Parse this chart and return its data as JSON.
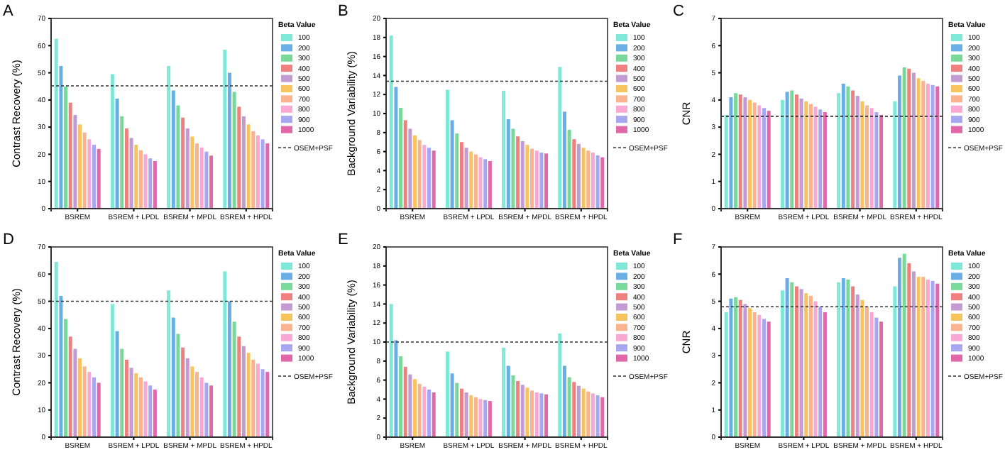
{
  "chart_data": [
    {
      "type": "bar",
      "title": "A",
      "ylabel": "Contrast Recovery (%)",
      "categories": [
        "BSREM",
        "BSREM + LPDL",
        "BSREM + MPDL",
        "BSREM + HPDL"
      ],
      "ylim": [
        0,
        70
      ],
      "yticks": [
        0,
        10,
        20,
        30,
        40,
        50,
        60,
        70
      ],
      "legend": "right",
      "legend_title": "Beta Value",
      "ref_lines": [
        {
          "axis": "y",
          "value": 45.2,
          "label": "OSEM+PSF",
          "line_style": "dashed",
          "color": "#333333"
        }
      ],
      "series": [
        {
          "name": "100",
          "color": "#7fe8d8",
          "values": [
            62.5,
            49.5,
            52.5,
            58.5
          ]
        },
        {
          "name": "200",
          "color": "#6aaee6",
          "values": [
            52.5,
            40.5,
            43.5,
            50
          ]
        },
        {
          "name": "300",
          "color": "#7ad99a",
          "values": [
            45,
            34,
            38,
            43
          ]
        },
        {
          "name": "400",
          "color": "#f08080",
          "values": [
            39,
            29.5,
            33.5,
            37.5
          ]
        },
        {
          "name": "500",
          "color": "#c39bd3",
          "values": [
            34.5,
            26,
            29.5,
            34
          ]
        },
        {
          "name": "600",
          "color": "#f7c35f",
          "values": [
            31,
            23.5,
            26.5,
            31
          ]
        },
        {
          "name": "700",
          "color": "#f9b38e",
          "values": [
            28,
            21.5,
            24,
            28.5
          ]
        },
        {
          "name": "800",
          "color": "#f9a8d4",
          "values": [
            25.5,
            20,
            22.5,
            27
          ]
        },
        {
          "name": "900",
          "color": "#a7a6f0",
          "values": [
            23.5,
            18.5,
            21,
            25.5
          ]
        },
        {
          "name": "1000",
          "color": "#e068a8",
          "values": [
            22,
            17.5,
            19.5,
            24
          ]
        }
      ]
    },
    {
      "type": "bar",
      "title": "B",
      "ylabel": "Background Variability (%)",
      "categories": [
        "BSREM",
        "BSREM + LPDL",
        "BSREM + MPDL",
        "BSREM + HPDL"
      ],
      "ylim": [
        0,
        20
      ],
      "yticks": [
        0,
        2,
        4,
        6,
        8,
        10,
        12,
        14,
        16,
        18,
        20
      ],
      "legend": "right",
      "legend_title": "Beta Value",
      "ref_lines": [
        {
          "axis": "y",
          "value": 13.4,
          "label": "OSEM+PSF",
          "line_style": "dashed",
          "color": "#333333"
        }
      ],
      "series": [
        {
          "name": "100",
          "color": "#7fe8d8",
          "values": [
            18.2,
            12.5,
            12.4,
            14.9
          ]
        },
        {
          "name": "200",
          "color": "#6aaee6",
          "values": [
            12.8,
            9.3,
            9.4,
            10.2
          ]
        },
        {
          "name": "300",
          "color": "#7ad99a",
          "values": [
            10.6,
            7.9,
            8.4,
            8.3
          ]
        },
        {
          "name": "400",
          "color": "#f08080",
          "values": [
            9.3,
            7.0,
            7.6,
            7.3
          ]
        },
        {
          "name": "500",
          "color": "#c39bd3",
          "values": [
            8.4,
            6.4,
            7.1,
            6.8
          ]
        },
        {
          "name": "600",
          "color": "#f7c35f",
          "values": [
            7.7,
            6.0,
            6.7,
            6.4
          ]
        },
        {
          "name": "700",
          "color": "#f9b38e",
          "values": [
            7.2,
            5.7,
            6.3,
            6.1
          ]
        },
        {
          "name": "800",
          "color": "#f9a8d4",
          "values": [
            6.7,
            5.4,
            6.1,
            5.9
          ]
        },
        {
          "name": "900",
          "color": "#a7a6f0",
          "values": [
            6.4,
            5.2,
            5.9,
            5.6
          ]
        },
        {
          "name": "1000",
          "color": "#e068a8",
          "values": [
            6.1,
            5.0,
            5.8,
            5.4
          ]
        }
      ]
    },
    {
      "type": "bar",
      "title": "C",
      "ylabel": "CNR",
      "categories": [
        "BSREM",
        "BSREM + LPDL",
        "BSREM + MPDL",
        "BSREM + HPDL"
      ],
      "ylim": [
        0,
        7
      ],
      "yticks": [
        0,
        1,
        2,
        3,
        4,
        5,
        6,
        7
      ],
      "legend": "right",
      "legend_title": "Beta Value",
      "ref_lines": [
        {
          "axis": "y",
          "value": 3.4,
          "label": "OSEM+PSF",
          "line_style": "dashed",
          "color": "#333333"
        }
      ],
      "series": [
        {
          "name": "100",
          "color": "#7fe8d8",
          "values": [
            3.45,
            4.0,
            4.25,
            3.95
          ]
        },
        {
          "name": "200",
          "color": "#6aaee6",
          "values": [
            4.1,
            4.3,
            4.6,
            4.9
          ]
        },
        {
          "name": "300",
          "color": "#7ad99a",
          "values": [
            4.25,
            4.35,
            4.5,
            5.2
          ]
        },
        {
          "name": "400",
          "color": "#f08080",
          "values": [
            4.2,
            4.2,
            4.35,
            5.15
          ]
        },
        {
          "name": "500",
          "color": "#c39bd3",
          "values": [
            4.1,
            4.05,
            4.15,
            5.0
          ]
        },
        {
          "name": "600",
          "color": "#f7c35f",
          "values": [
            4.0,
            3.95,
            3.95,
            4.8
          ]
        },
        {
          "name": "700",
          "color": "#f9b38e",
          "values": [
            3.9,
            3.85,
            3.8,
            4.7
          ]
        },
        {
          "name": "800",
          "color": "#f9a8d4",
          "values": [
            3.8,
            3.75,
            3.7,
            4.6
          ]
        },
        {
          "name": "900",
          "color": "#a7a6f0",
          "values": [
            3.7,
            3.65,
            3.55,
            4.55
          ]
        },
        {
          "name": "1000",
          "color": "#e068a8",
          "values": [
            3.6,
            3.55,
            3.45,
            4.5
          ]
        }
      ]
    },
    {
      "type": "bar",
      "title": "D",
      "ylabel": "Contrast Recovery (%)",
      "categories": [
        "BSREM",
        "BSREM + LPDL",
        "BSREM + MPDL",
        "BSREM + HPDL"
      ],
      "ylim": [
        0,
        70
      ],
      "yticks": [
        0,
        10,
        20,
        30,
        40,
        50,
        60,
        70
      ],
      "legend": "right",
      "legend_title": "Beta Value",
      "ref_lines": [
        {
          "axis": "y",
          "value": 50,
          "label": "OSEM+PSF",
          "line_style": "dashed",
          "color": "#333333"
        }
      ],
      "series": [
        {
          "name": "100",
          "color": "#7fe8d8",
          "values": [
            64.5,
            49,
            54,
            61
          ]
        },
        {
          "name": "200",
          "color": "#6aaee6",
          "values": [
            52,
            39,
            44,
            50
          ]
        },
        {
          "name": "300",
          "color": "#7ad99a",
          "values": [
            43.5,
            32.5,
            38,
            42.5
          ]
        },
        {
          "name": "400",
          "color": "#f08080",
          "values": [
            37,
            28.5,
            33,
            37
          ]
        },
        {
          "name": "500",
          "color": "#c39bd3",
          "values": [
            32.5,
            25.5,
            29,
            33.5
          ]
        },
        {
          "name": "600",
          "color": "#f7c35f",
          "values": [
            29,
            23.5,
            26,
            31
          ]
        },
        {
          "name": "700",
          "color": "#f9b38e",
          "values": [
            26,
            22,
            24,
            28.5
          ]
        },
        {
          "name": "800",
          "color": "#f9a8d4",
          "values": [
            24,
            20.5,
            22,
            27
          ]
        },
        {
          "name": "900",
          "color": "#a7a6f0",
          "values": [
            22,
            19,
            20,
            25
          ]
        },
        {
          "name": "1000",
          "color": "#e068a8",
          "values": [
            20,
            17.5,
            19,
            24
          ]
        }
      ]
    },
    {
      "type": "bar",
      "title": "E",
      "ylabel": "Background Variability (%)",
      "categories": [
        "BSREM",
        "BSREM + LPDL",
        "BSREM + MPDL",
        "BSREM + HPDL"
      ],
      "ylim": [
        0,
        20
      ],
      "yticks": [
        0,
        2,
        4,
        6,
        8,
        10,
        12,
        14,
        16,
        18,
        20
      ],
      "legend": "right",
      "legend_title": "Beta Value",
      "ref_lines": [
        {
          "axis": "y",
          "value": 10,
          "label": "OSEM+PSF",
          "line_style": "dashed",
          "color": "#333333"
        }
      ],
      "series": [
        {
          "name": "100",
          "color": "#7fe8d8",
          "values": [
            14,
            9.0,
            9.4,
            10.9
          ]
        },
        {
          "name": "200",
          "color": "#6aaee6",
          "values": [
            10.2,
            6.7,
            7.5,
            7.5
          ]
        },
        {
          "name": "300",
          "color": "#7ad99a",
          "values": [
            8.5,
            5.7,
            6.5,
            6.3
          ]
        },
        {
          "name": "400",
          "color": "#f08080",
          "values": [
            7.4,
            5.1,
            5.9,
            5.8
          ]
        },
        {
          "name": "500",
          "color": "#c39bd3",
          "values": [
            6.6,
            4.7,
            5.5,
            5.4
          ]
        },
        {
          "name": "600",
          "color": "#f7c35f",
          "values": [
            6.1,
            4.4,
            5.2,
            5.1
          ]
        },
        {
          "name": "700",
          "color": "#f9b38e",
          "values": [
            5.6,
            4.2,
            4.9,
            4.8
          ]
        },
        {
          "name": "800",
          "color": "#f9a8d4",
          "values": [
            5.3,
            4.0,
            4.7,
            4.6
          ]
        },
        {
          "name": "900",
          "color": "#a7a6f0",
          "values": [
            5.0,
            3.9,
            4.6,
            4.4
          ]
        },
        {
          "name": "1000",
          "color": "#e068a8",
          "values": [
            4.7,
            3.8,
            4.5,
            4.2
          ]
        }
      ]
    },
    {
      "type": "bar",
      "title": "F",
      "ylabel": "CNR",
      "categories": [
        "BSREM",
        "BSREM + LPDL",
        "BSREM + MPDL",
        "BSREM + HPDL"
      ],
      "ylim": [
        0,
        7
      ],
      "yticks": [
        0,
        1,
        2,
        3,
        4,
        5,
        6,
        7
      ],
      "legend": "right",
      "legend_title": "Beta Value",
      "ref_lines": [
        {
          "axis": "y",
          "value": 4.8,
          "label": "OSEM+PSF",
          "line_style": "dashed",
          "color": "#333333"
        }
      ],
      "series": [
        {
          "name": "100",
          "color": "#7fe8d8",
          "values": [
            4.6,
            5.4,
            5.7,
            5.55
          ]
        },
        {
          "name": "200",
          "color": "#6aaee6",
          "values": [
            5.1,
            5.85,
            5.85,
            6.6
          ]
        },
        {
          "name": "300",
          "color": "#7ad99a",
          "values": [
            5.15,
            5.7,
            5.8,
            6.75
          ]
        },
        {
          "name": "400",
          "color": "#f08080",
          "values": [
            5.05,
            5.55,
            5.55,
            6.4
          ]
        },
        {
          "name": "500",
          "color": "#c39bd3",
          "values": [
            4.9,
            5.45,
            5.25,
            6.1
          ]
        },
        {
          "name": "600",
          "color": "#f7c35f",
          "values": [
            4.75,
            5.3,
            5.05,
            5.9
          ]
        },
        {
          "name": "700",
          "color": "#f9b38e",
          "values": [
            4.6,
            5.2,
            4.8,
            5.9
          ]
        },
        {
          "name": "800",
          "color": "#f9a8d4",
          "values": [
            4.5,
            5.0,
            4.6,
            5.8
          ]
        },
        {
          "name": "900",
          "color": "#a7a6f0",
          "values": [
            4.35,
            4.8,
            4.4,
            5.75
          ]
        },
        {
          "name": "1000",
          "color": "#e068a8",
          "values": [
            4.25,
            4.6,
            4.25,
            5.65
          ]
        }
      ]
    }
  ]
}
